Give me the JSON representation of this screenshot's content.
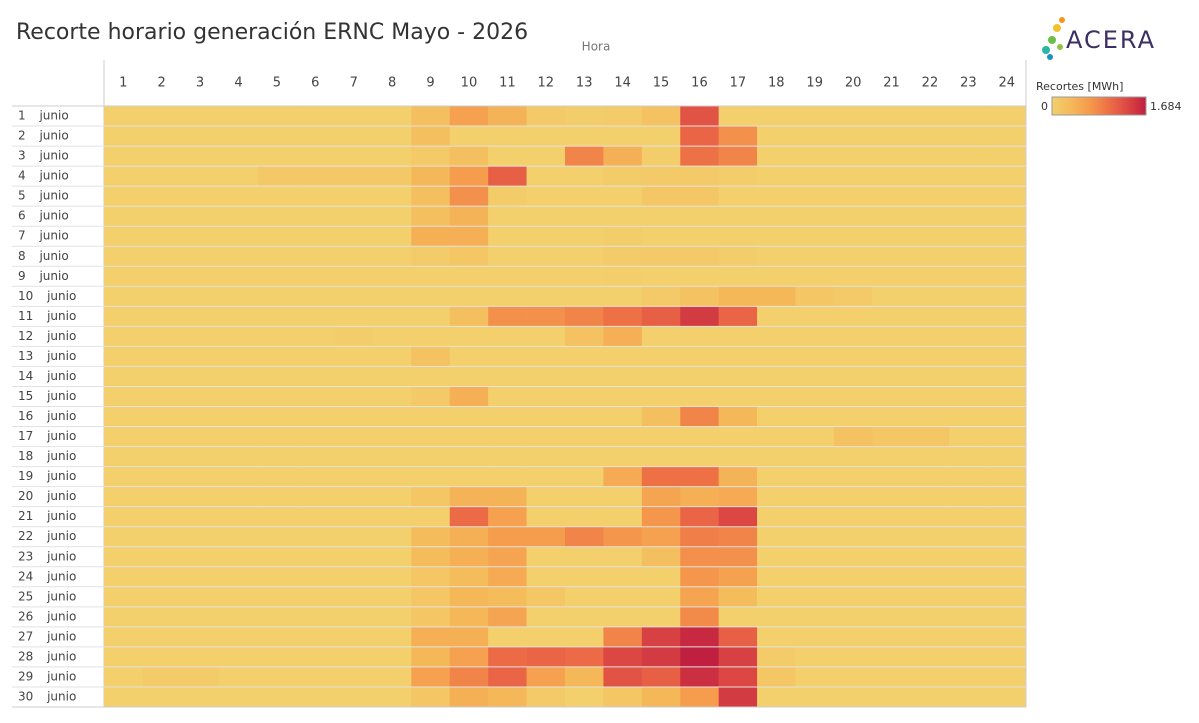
{
  "chart_data": {
    "type": "heatmap",
    "title": "Recorte horario generación ERNC Mayo - 2026",
    "x_label": "Hora",
    "logo_text": "ACERA",
    "legend_title": "Recortes [MWh]",
    "colorscale": [
      "#f3d06c",
      "#f5b95a",
      "#f59a4c",
      "#ee7046",
      "#dc4744",
      "#c01f3f"
    ],
    "colorbar": [
      0,
      {
        "value": 1684,
        "label": "1.684"
      }
    ],
    "x": [
      1,
      2,
      3,
      4,
      5,
      6,
      7,
      8,
      9,
      10,
      11,
      12,
      13,
      14,
      15,
      16,
      17,
      18,
      19,
      20,
      21,
      22,
      23,
      24
    ],
    "y": [
      "1 junio",
      "2 junio",
      "3 junio",
      "4 junio",
      "5 junio",
      "6 junio",
      "7 junio",
      "8 junio",
      "9 junio",
      "10 junio",
      "11 junio",
      "12 junio",
      "13 junio",
      "14 junio",
      "15 junio",
      "16 junio",
      "17 junio",
      "18 junio",
      "19 junio",
      "20 junio",
      "21 junio",
      "22 junio",
      "23 junio",
      "24 junio",
      "25 junio",
      "26 junio",
      "27 junio",
      "28 junio",
      "29 junio",
      "30 junio"
    ],
    "values": [
      [
        0,
        0,
        0,
        0,
        0,
        0,
        0,
        0,
        250,
        600,
        400,
        100,
        50,
        80,
        200,
        1250,
        0,
        0,
        0,
        0,
        0,
        0,
        0,
        0
      ],
      [
        0,
        0,
        0,
        0,
        0,
        0,
        0,
        0,
        250,
        0,
        0,
        0,
        0,
        0,
        0,
        1100,
        750,
        0,
        0,
        0,
        0,
        0,
        0,
        0
      ],
      [
        0,
        0,
        0,
        0,
        0,
        0,
        0,
        0,
        100,
        250,
        0,
        0,
        850,
        450,
        50,
        1000,
        850,
        0,
        0,
        0,
        0,
        0,
        0,
        0
      ],
      [
        0,
        0,
        0,
        0,
        120,
        120,
        120,
        120,
        350,
        650,
        1150,
        0,
        0,
        80,
        100,
        100,
        50,
        0,
        0,
        0,
        0,
        0,
        0,
        0
      ],
      [
        0,
        0,
        0,
        0,
        0,
        0,
        0,
        0,
        250,
        750,
        80,
        0,
        0,
        0,
        150,
        150,
        0,
        0,
        0,
        0,
        0,
        0,
        0,
        0
      ],
      [
        0,
        0,
        0,
        0,
        0,
        0,
        0,
        0,
        250,
        400,
        0,
        0,
        0,
        0,
        0,
        0,
        0,
        0,
        0,
        0,
        0,
        0,
        0,
        0
      ],
      [
        0,
        0,
        0,
        0,
        0,
        0,
        0,
        0,
        450,
        450,
        0,
        0,
        0,
        50,
        0,
        0,
        0,
        0,
        0,
        0,
        0,
        0,
        0,
        0
      ],
      [
        0,
        0,
        0,
        0,
        0,
        0,
        0,
        0,
        80,
        150,
        0,
        0,
        0,
        80,
        100,
        100,
        50,
        0,
        0,
        0,
        0,
        0,
        0,
        0
      ],
      [
        0,
        0,
        0,
        0,
        0,
        0,
        0,
        0,
        0,
        0,
        0,
        0,
        0,
        30,
        0,
        0,
        0,
        0,
        0,
        0,
        0,
        0,
        0,
        0
      ],
      [
        0,
        0,
        0,
        0,
        0,
        0,
        0,
        0,
        0,
        0,
        0,
        0,
        0,
        0,
        100,
        200,
        350,
        350,
        150,
        100,
        0,
        0,
        0,
        0
      ],
      [
        0,
        0,
        0,
        0,
        0,
        0,
        0,
        0,
        0,
        250,
        750,
        750,
        850,
        1000,
        1150,
        1450,
        1100,
        0,
        0,
        0,
        0,
        0,
        0,
        0
      ],
      [
        0,
        0,
        0,
        0,
        0,
        0,
        50,
        0,
        0,
        0,
        0,
        0,
        200,
        450,
        0,
        0,
        0,
        0,
        0,
        0,
        0,
        0,
        0,
        0
      ],
      [
        0,
        0,
        0,
        0,
        0,
        0,
        0,
        0,
        200,
        0,
        0,
        0,
        0,
        0,
        0,
        0,
        0,
        0,
        0,
        0,
        0,
        0,
        0,
        0
      ],
      [
        0,
        0,
        0,
        0,
        0,
        0,
        0,
        0,
        0,
        0,
        0,
        0,
        0,
        0,
        0,
        0,
        0,
        0,
        0,
        0,
        0,
        0,
        0,
        0
      ],
      [
        0,
        0,
        0,
        0,
        0,
        0,
        0,
        0,
        100,
        450,
        0,
        0,
        0,
        0,
        0,
        0,
        0,
        0,
        0,
        0,
        0,
        0,
        0,
        0
      ],
      [
        0,
        0,
        0,
        0,
        0,
        0,
        0,
        0,
        0,
        0,
        0,
        0,
        0,
        0,
        250,
        850,
        350,
        0,
        0,
        0,
        0,
        0,
        0,
        0
      ],
      [
        0,
        0,
        0,
        0,
        0,
        0,
        0,
        0,
        0,
        0,
        0,
        0,
        0,
        0,
        0,
        0,
        0,
        0,
        0,
        200,
        150,
        150,
        0,
        0
      ],
      [
        0,
        0,
        0,
        0,
        0,
        0,
        0,
        0,
        0,
        0,
        0,
        0,
        0,
        0,
        0,
        0,
        0,
        0,
        0,
        0,
        0,
        0,
        0,
        0
      ],
      [
        0,
        0,
        0,
        0,
        0,
        0,
        0,
        0,
        0,
        0,
        0,
        0,
        0,
        500,
        1000,
        1000,
        400,
        0,
        0,
        0,
        0,
        0,
        0,
        0
      ],
      [
        0,
        0,
        0,
        0,
        0,
        0,
        0,
        0,
        150,
        400,
        400,
        0,
        0,
        0,
        550,
        450,
        500,
        0,
        0,
        0,
        0,
        0,
        0,
        0
      ],
      [
        0,
        0,
        0,
        0,
        0,
        0,
        0,
        0,
        0,
        1050,
        600,
        0,
        0,
        0,
        700,
        1100,
        1350,
        0,
        0,
        0,
        0,
        0,
        0,
        0
      ],
      [
        0,
        0,
        0,
        0,
        0,
        0,
        0,
        0,
        300,
        450,
        650,
        650,
        850,
        700,
        600,
        900,
        850,
        0,
        0,
        0,
        0,
        0,
        0,
        0
      ],
      [
        0,
        0,
        0,
        0,
        0,
        0,
        0,
        0,
        300,
        450,
        550,
        0,
        0,
        0,
        250,
        750,
        750,
        0,
        0,
        0,
        0,
        0,
        0,
        0
      ],
      [
        0,
        0,
        0,
        0,
        0,
        0,
        0,
        0,
        150,
        300,
        500,
        0,
        0,
        0,
        0,
        700,
        600,
        0,
        0,
        0,
        0,
        0,
        0,
        0
      ],
      [
        0,
        0,
        0,
        0,
        0,
        0,
        0,
        0,
        150,
        350,
        300,
        150,
        0,
        0,
        0,
        550,
        300,
        0,
        0,
        0,
        0,
        0,
        0,
        0
      ],
      [
        0,
        0,
        0,
        0,
        0,
        0,
        0,
        0,
        150,
        350,
        550,
        0,
        0,
        0,
        0,
        800,
        0,
        0,
        0,
        0,
        0,
        0,
        0,
        0
      ],
      [
        0,
        0,
        0,
        0,
        0,
        0,
        0,
        0,
        450,
        450,
        0,
        0,
        0,
        850,
        1400,
        1600,
        1150,
        0,
        0,
        0,
        0,
        0,
        0,
        0
      ],
      [
        0,
        0,
        0,
        0,
        0,
        0,
        0,
        0,
        350,
        600,
        1050,
        1100,
        1050,
        1350,
        1450,
        1684,
        1400,
        80,
        0,
        0,
        0,
        0,
        0,
        0
      ],
      [
        0,
        80,
        80,
        0,
        0,
        0,
        0,
        0,
        600,
        850,
        1100,
        600,
        350,
        1250,
        1150,
        1550,
        1350,
        150,
        0,
        0,
        0,
        0,
        0,
        0
      ],
      [
        0,
        0,
        0,
        0,
        0,
        0,
        0,
        0,
        150,
        450,
        350,
        100,
        0,
        150,
        350,
        650,
        1450,
        0,
        0,
        0,
        0,
        0,
        0,
        0
      ]
    ]
  }
}
